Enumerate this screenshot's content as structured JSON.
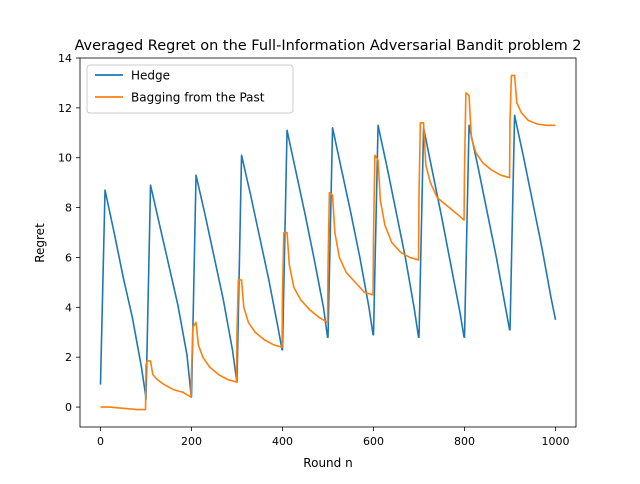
{
  "chart_data": {
    "type": "line",
    "title": "Averaged Regret on the Full-Information Adversarial Bandit problem 2",
    "xlabel": "Round n",
    "ylabel": "Regret",
    "xlim": [
      -45,
      1045
    ],
    "ylim": [
      -0.8,
      14
    ],
    "xticks": [
      0,
      200,
      400,
      600,
      800,
      1000
    ],
    "xtick_labels": [
      "0",
      "200",
      "400",
      "600",
      "800",
      "1000"
    ],
    "yticks": [
      0,
      2,
      4,
      6,
      8,
      10,
      12,
      14
    ],
    "ytick_labels": [
      "0",
      "2",
      "4",
      "6",
      "8",
      "10",
      "12",
      "14"
    ],
    "grid": false,
    "legend": "top-left",
    "series": [
      {
        "name": "Hedge",
        "color": "#1f77b4",
        "x": [
          0,
          10,
          30,
          50,
          70,
          90,
          99,
          100,
          110,
          130,
          150,
          170,
          190,
          199,
          200,
          210,
          230,
          250,
          270,
          290,
          299,
          300,
          310,
          330,
          350,
          370,
          390,
          399,
          400,
          410,
          430,
          450,
          470,
          490,
          499,
          500,
          510,
          530,
          550,
          570,
          590,
          599,
          600,
          610,
          630,
          650,
          670,
          690,
          699,
          700,
          710,
          730,
          750,
          770,
          790,
          799,
          800,
          810,
          830,
          850,
          870,
          890,
          899,
          900,
          910,
          930,
          950,
          970,
          990,
          1000
        ],
        "y": [
          0.9,
          8.7,
          7.0,
          5.2,
          3.6,
          1.6,
          0.5,
          0.3,
          8.9,
          7.3,
          5.7,
          4.1,
          2.1,
          0.5,
          0.4,
          9.3,
          7.7,
          6.0,
          4.3,
          2.3,
          1.1,
          1.0,
          10.1,
          8.5,
          6.8,
          5.1,
          3.2,
          2.3,
          2.3,
          11.1,
          9.4,
          7.7,
          5.9,
          4.0,
          2.8,
          2.8,
          11.2,
          9.5,
          7.8,
          6.0,
          4.0,
          2.9,
          2.9,
          11.3,
          9.6,
          7.8,
          6.0,
          3.9,
          2.8,
          2.8,
          11.2,
          9.4,
          7.6,
          5.7,
          3.8,
          2.8,
          2.8,
          11.3,
          9.6,
          7.8,
          6.0,
          4.0,
          3.1,
          3.1,
          11.7,
          10.0,
          8.2,
          6.4,
          4.4,
          3.5
        ]
      },
      {
        "name": "Bagging from the Past",
        "color": "#ff7f0e",
        "x": [
          0,
          20,
          50,
          80,
          99,
          100,
          103,
          110,
          115,
          125,
          140,
          160,
          180,
          199,
          200,
          203,
          210,
          215,
          225,
          240,
          260,
          280,
          299,
          300,
          303,
          310,
          315,
          325,
          340,
          360,
          380,
          399,
          400,
          403,
          410,
          415,
          425,
          440,
          460,
          480,
          499,
          500,
          503,
          510,
          515,
          525,
          540,
          560,
          580,
          599,
          600,
          603,
          610,
          615,
          625,
          640,
          660,
          680,
          699,
          700,
          703,
          710,
          715,
          725,
          740,
          760,
          780,
          799,
          800,
          803,
          810,
          815,
          825,
          840,
          860,
          880,
          899,
          900,
          903,
          910,
          915,
          925,
          940,
          960,
          980,
          1000
        ],
        "y": [
          0.0,
          0.0,
          -0.05,
          -0.1,
          -0.1,
          1.7,
          1.85,
          1.85,
          1.3,
          1.1,
          0.9,
          0.7,
          0.6,
          0.4,
          1.4,
          3.2,
          3.4,
          2.5,
          2.0,
          1.6,
          1.3,
          1.1,
          1.0,
          3.0,
          5.1,
          5.1,
          4.0,
          3.4,
          3.0,
          2.7,
          2.5,
          2.4,
          4.6,
          7.0,
          7.0,
          5.7,
          4.8,
          4.3,
          3.9,
          3.6,
          3.4,
          5.6,
          8.6,
          8.5,
          7.0,
          6.0,
          5.4,
          5.0,
          4.6,
          4.5,
          6.8,
          10.1,
          9.9,
          8.3,
          7.3,
          6.6,
          6.2,
          6.0,
          5.9,
          8.5,
          11.4,
          11.4,
          9.7,
          9.0,
          8.4,
          8.1,
          7.8,
          7.5,
          9.5,
          12.6,
          12.5,
          10.8,
          10.2,
          9.8,
          9.5,
          9.3,
          9.2,
          11.5,
          13.3,
          13.3,
          12.2,
          11.8,
          11.5,
          11.35,
          11.3,
          11.3
        ]
      }
    ]
  }
}
